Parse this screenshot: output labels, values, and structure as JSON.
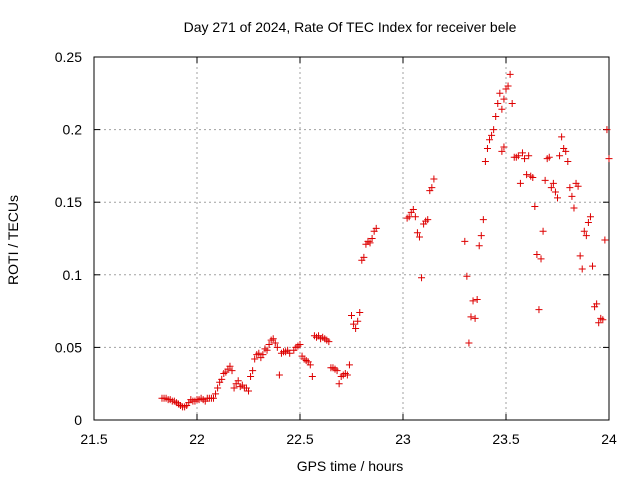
{
  "chart_data": {
    "type": "scatter",
    "title": "Day 271 of 2024, Rate Of TEC Index for receiver bele",
    "xlabel": "GPS time / hours",
    "ylabel": "ROTI / TECUs",
    "xlim": [
      21.5,
      24
    ],
    "ylim": [
      0,
      0.25
    ],
    "xticks": [
      21.5,
      22,
      22.5,
      23,
      23.5,
      24
    ],
    "yticks": [
      0,
      0.05,
      0.1,
      0.15,
      0.2,
      0.25
    ],
    "xtick_labels": [
      "21.5",
      "22",
      "22.5",
      "23",
      "23.5",
      "24"
    ],
    "ytick_labels": [
      "0",
      "0.05",
      "0.1",
      "0.15",
      "0.2",
      "0.25"
    ],
    "grid": true,
    "marker": "+",
    "color": "#dd0000",
    "series": [
      {
        "name": "ROTI",
        "points": [
          [
            21.83,
            0.015
          ],
          [
            21.84,
            0.015
          ],
          [
            21.85,
            0.015
          ],
          [
            21.86,
            0.014
          ],
          [
            21.87,
            0.014
          ],
          [
            21.88,
            0.013
          ],
          [
            21.89,
            0.013
          ],
          [
            21.9,
            0.012
          ],
          [
            21.91,
            0.011
          ],
          [
            21.92,
            0.01
          ],
          [
            21.93,
            0.009
          ],
          [
            21.94,
            0.009
          ],
          [
            21.95,
            0.01
          ],
          [
            21.96,
            0.012
          ],
          [
            21.97,
            0.014
          ],
          [
            21.98,
            0.013
          ],
          [
            21.99,
            0.013
          ],
          [
            22.0,
            0.014
          ],
          [
            22.01,
            0.014
          ],
          [
            22.02,
            0.015
          ],
          [
            22.03,
            0.014
          ],
          [
            22.04,
            0.013
          ],
          [
            22.05,
            0.015
          ],
          [
            22.06,
            0.015
          ],
          [
            22.07,
            0.015
          ],
          [
            22.08,
            0.015
          ],
          [
            22.09,
            0.018
          ],
          [
            22.1,
            0.022
          ],
          [
            22.11,
            0.026
          ],
          [
            22.12,
            0.028
          ],
          [
            22.13,
            0.032
          ],
          [
            22.14,
            0.033
          ],
          [
            22.15,
            0.035
          ],
          [
            22.16,
            0.037
          ],
          [
            22.17,
            0.034
          ],
          [
            22.18,
            0.022
          ],
          [
            22.19,
            0.025
          ],
          [
            22.2,
            0.027
          ],
          [
            22.21,
            0.023
          ],
          [
            22.22,
            0.024
          ],
          [
            22.23,
            0.022
          ],
          [
            22.24,
            0.022
          ],
          [
            22.25,
            0.02
          ],
          [
            22.26,
            0.03
          ],
          [
            22.27,
            0.034
          ],
          [
            22.28,
            0.042
          ],
          [
            22.29,
            0.045
          ],
          [
            22.3,
            0.046
          ],
          [
            22.31,
            0.043
          ],
          [
            22.32,
            0.045
          ],
          [
            22.33,
            0.049
          ],
          [
            22.34,
            0.048
          ],
          [
            22.35,
            0.052
          ],
          [
            22.36,
            0.055
          ],
          [
            22.37,
            0.056
          ],
          [
            22.38,
            0.053
          ],
          [
            22.39,
            0.05
          ],
          [
            22.4,
            0.031
          ],
          [
            22.41,
            0.046
          ],
          [
            22.42,
            0.047
          ],
          [
            22.43,
            0.047
          ],
          [
            22.44,
            0.048
          ],
          [
            22.45,
            0.046
          ],
          [
            22.47,
            0.048
          ],
          [
            22.48,
            0.05
          ],
          [
            22.49,
            0.051
          ],
          [
            22.5,
            0.052
          ],
          [
            22.51,
            0.044
          ],
          [
            22.52,
            0.042
          ],
          [
            22.53,
            0.041
          ],
          [
            22.54,
            0.04
          ],
          [
            22.55,
            0.038
          ],
          [
            22.56,
            0.03
          ],
          [
            22.57,
            0.058
          ],
          [
            22.58,
            0.057
          ],
          [
            22.59,
            0.058
          ],
          [
            22.6,
            0.056
          ],
          [
            22.61,
            0.057
          ],
          [
            22.62,
            0.056
          ],
          [
            22.63,
            0.055
          ],
          [
            22.64,
            0.054
          ],
          [
            22.65,
            0.036
          ],
          [
            22.66,
            0.036
          ],
          [
            22.67,
            0.035
          ],
          [
            22.68,
            0.034
          ],
          [
            22.69,
            0.025
          ],
          [
            22.7,
            0.03
          ],
          [
            22.71,
            0.031
          ],
          [
            22.72,
            0.032
          ],
          [
            22.73,
            0.031
          ],
          [
            22.74,
            0.038
          ],
          [
            22.75,
            0.072
          ],
          [
            22.76,
            0.066
          ],
          [
            22.77,
            0.063
          ],
          [
            22.78,
            0.068
          ],
          [
            22.79,
            0.074
          ],
          [
            22.8,
            0.11
          ],
          [
            22.81,
            0.112
          ],
          [
            22.82,
            0.121
          ],
          [
            22.83,
            0.123
          ],
          [
            22.84,
            0.122
          ],
          [
            22.85,
            0.125
          ],
          [
            22.86,
            0.13
          ],
          [
            22.87,
            0.132
          ],
          [
            23.02,
            0.139
          ],
          [
            23.03,
            0.14
          ],
          [
            23.04,
            0.143
          ],
          [
            23.05,
            0.145
          ],
          [
            23.06,
            0.14
          ],
          [
            23.07,
            0.129
          ],
          [
            23.08,
            0.126
          ],
          [
            23.09,
            0.098
          ],
          [
            23.1,
            0.135
          ],
          [
            23.11,
            0.137
          ],
          [
            23.12,
            0.138
          ],
          [
            23.13,
            0.158
          ],
          [
            23.14,
            0.16
          ],
          [
            23.15,
            0.166
          ],
          [
            23.3,
            0.123
          ],
          [
            23.31,
            0.099
          ],
          [
            23.32,
            0.053
          ],
          [
            23.33,
            0.071
          ],
          [
            23.34,
            0.082
          ],
          [
            23.35,
            0.07
          ],
          [
            23.36,
            0.083
          ],
          [
            23.37,
            0.12
          ],
          [
            23.38,
            0.127
          ],
          [
            23.39,
            0.138
          ],
          [
            23.4,
            0.178
          ],
          [
            23.41,
            0.187
          ],
          [
            23.42,
            0.193
          ],
          [
            23.43,
            0.196
          ],
          [
            23.44,
            0.2
          ],
          [
            23.45,
            0.209
          ],
          [
            23.46,
            0.218
          ],
          [
            23.47,
            0.225
          ],
          [
            23.48,
            0.214
          ],
          [
            23.49,
            0.221
          ],
          [
            23.5,
            0.228
          ],
          [
            23.51,
            0.23
          ],
          [
            23.52,
            0.238
          ],
          [
            23.53,
            0.218
          ],
          [
            23.48,
            0.185
          ],
          [
            23.49,
            0.188
          ],
          [
            23.54,
            0.181
          ],
          [
            23.55,
            0.181
          ],
          [
            23.56,
            0.182
          ],
          [
            23.57,
            0.163
          ],
          [
            23.58,
            0.184
          ],
          [
            23.59,
            0.18
          ],
          [
            23.6,
            0.169
          ],
          [
            23.61,
            0.182
          ],
          [
            23.62,
            0.168
          ],
          [
            23.63,
            0.167
          ],
          [
            23.64,
            0.147
          ],
          [
            23.65,
            0.114
          ],
          [
            23.66,
            0.076
          ],
          [
            23.67,
            0.111
          ],
          [
            23.68,
            0.13
          ],
          [
            23.69,
            0.165
          ],
          [
            23.7,
            0.18
          ],
          [
            23.71,
            0.181
          ],
          [
            23.72,
            0.16
          ],
          [
            23.73,
            0.163
          ],
          [
            23.74,
            0.157
          ],
          [
            23.75,
            0.153
          ],
          [
            23.76,
            0.182
          ],
          [
            23.77,
            0.195
          ],
          [
            23.78,
            0.187
          ],
          [
            23.79,
            0.185
          ],
          [
            23.8,
            0.178
          ],
          [
            23.81,
            0.16
          ],
          [
            23.82,
            0.154
          ],
          [
            23.83,
            0.146
          ],
          [
            23.84,
            0.163
          ],
          [
            23.85,
            0.161
          ],
          [
            23.86,
            0.113
          ],
          [
            23.87,
            0.104
          ],
          [
            23.88,
            0.13
          ],
          [
            23.89,
            0.127
          ],
          [
            23.9,
            0.136
          ],
          [
            23.91,
            0.14
          ],
          [
            23.92,
            0.106
          ],
          [
            23.93,
            0.078
          ],
          [
            23.94,
            0.08
          ],
          [
            23.95,
            0.067
          ],
          [
            23.96,
            0.07
          ],
          [
            23.97,
            0.069
          ],
          [
            23.98,
            0.124
          ],
          [
            23.99,
            0.2
          ],
          [
            24.0,
            0.18
          ]
        ]
      }
    ]
  }
}
